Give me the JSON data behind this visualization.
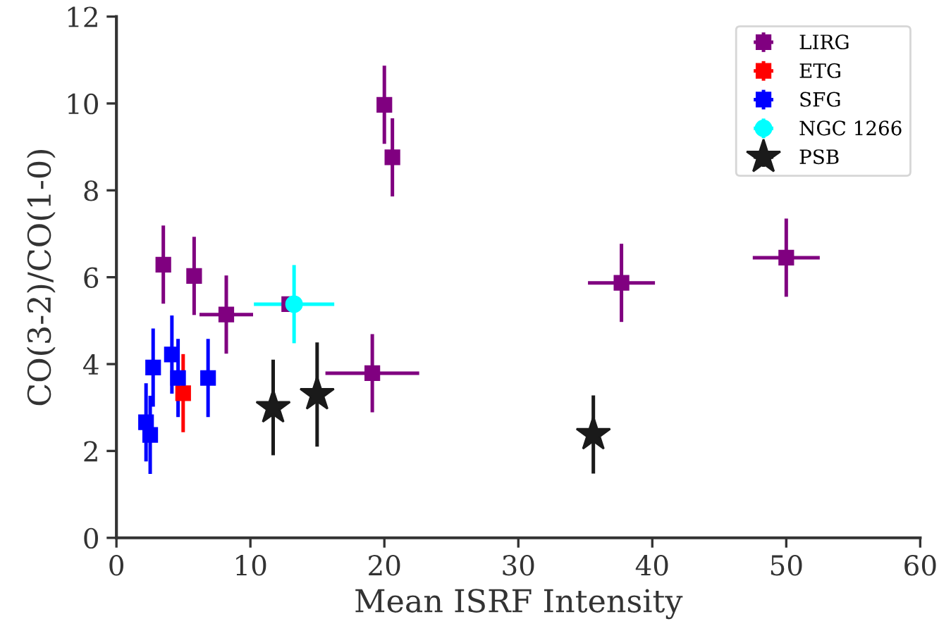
{
  "chart_data": {
    "type": "scatter",
    "xlabel": "Mean ISRF Intensity",
    "ylabel": "CO(3-2)/CO(1-0)",
    "xlim": [
      0,
      60
    ],
    "ylim": [
      0,
      12
    ],
    "xticks": [
      0,
      10,
      20,
      30,
      40,
      50,
      60
    ],
    "yticks": [
      0,
      2,
      4,
      6,
      8,
      10,
      12
    ],
    "grid": false,
    "legend": "top right",
    "series": [
      {
        "name": "LIRG",
        "color": "#800080",
        "marker": "square",
        "x": [
          3.5,
          5.8,
          8.2,
          12.9,
          20.0,
          20.6,
          19.1,
          37.7,
          50.0
        ],
        "values": [
          6.29,
          6.03,
          5.14,
          5.38,
          9.97,
          8.76,
          3.79,
          5.87,
          6.45
        ],
        "errors": [
          0.9,
          0.9,
          0.9,
          null,
          0.9,
          0.9,
          0.9,
          0.9,
          0.9
        ],
        "xerrors": [
          null,
          null,
          2.0,
          null,
          null,
          null,
          3.5,
          2.5,
          2.5
        ]
      },
      {
        "name": "ETG",
        "color": "#ff0000",
        "marker": "square",
        "x": [
          4.98
        ],
        "values": [
          3.33
        ],
        "errors": [
          0.9
        ],
        "xerrors": [
          null
        ]
      },
      {
        "name": "SFG",
        "color": "#0000ff",
        "marker": "square",
        "x": [
          2.74,
          4.14,
          4.6,
          6.84,
          2.21,
          2.52
        ],
        "values": [
          3.92,
          4.22,
          3.68,
          3.68,
          2.66,
          2.37
        ],
        "errors": [
          0.9,
          0.9,
          0.9,
          0.9,
          0.9,
          0.9
        ],
        "xerrors": [
          null,
          null,
          null,
          null,
          null,
          null
        ]
      },
      {
        "name": "NGC 1266",
        "color": "#00ffff",
        "marker": "circle",
        "x": [
          13.26
        ],
        "values": [
          5.38
        ],
        "errors": [
          0.9
        ],
        "xerrors": [
          3.0
        ]
      },
      {
        "name": "PSB",
        "color": "#1a1a1a",
        "marker": "star",
        "x": [
          11.7,
          14.98,
          35.6
        ],
        "values": [
          3.0,
          3.3,
          2.38
        ],
        "errors": [
          1.1,
          1.2,
          0.9
        ],
        "xerrors": [
          null,
          null,
          null
        ]
      }
    ]
  }
}
